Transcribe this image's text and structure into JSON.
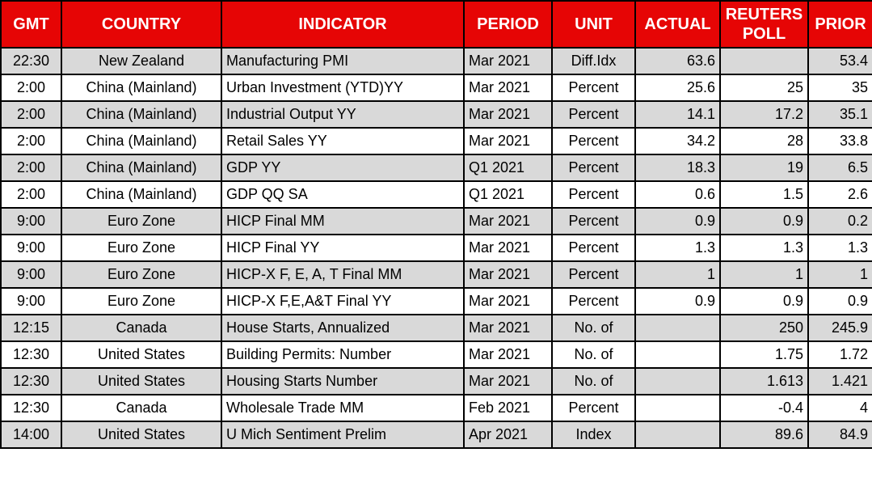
{
  "colors": {
    "header_bg": "#e60505",
    "header_text": "#ffffff",
    "row_stripe": "#d9d9d9",
    "row_plain": "#ffffff",
    "border": "#000000"
  },
  "chart_data": {
    "type": "table",
    "columns": [
      {
        "key": "gmt",
        "label": "GMT"
      },
      {
        "key": "country",
        "label": "COUNTRY"
      },
      {
        "key": "indicator",
        "label": "INDICATOR"
      },
      {
        "key": "period",
        "label": "PERIOD"
      },
      {
        "key": "unit",
        "label": "UNIT"
      },
      {
        "key": "actual",
        "label": "ACTUAL"
      },
      {
        "key": "reuters_poll",
        "label": "REUTERS POLL"
      },
      {
        "key": "prior",
        "label": "PRIOR"
      }
    ],
    "rows": [
      {
        "gmt": "22:30",
        "country": "New Zealand",
        "indicator": "Manufacturing PMI",
        "period": "Mar 2021",
        "unit": "Diff.Idx",
        "actual": "63.6",
        "reuters_poll": "",
        "prior": "53.4"
      },
      {
        "gmt": "2:00",
        "country": "China (Mainland)",
        "indicator": "Urban Investment (YTD)YY",
        "period": "Mar 2021",
        "unit": "Percent",
        "actual": "25.6",
        "reuters_poll": "25",
        "prior": "35"
      },
      {
        "gmt": "2:00",
        "country": "China (Mainland)",
        "indicator": "Industrial Output YY",
        "period": "Mar 2021",
        "unit": "Percent",
        "actual": "14.1",
        "reuters_poll": "17.2",
        "prior": "35.1"
      },
      {
        "gmt": "2:00",
        "country": "China (Mainland)",
        "indicator": "Retail Sales YY",
        "period": "Mar 2021",
        "unit": "Percent",
        "actual": "34.2",
        "reuters_poll": "28",
        "prior": "33.8"
      },
      {
        "gmt": "2:00",
        "country": "China (Mainland)",
        "indicator": "GDP YY",
        "period": "Q1 2021",
        "unit": "Percent",
        "actual": "18.3",
        "reuters_poll": "19",
        "prior": "6.5"
      },
      {
        "gmt": "2:00",
        "country": "China (Mainland)",
        "indicator": "GDP QQ SA",
        "period": "Q1 2021",
        "unit": "Percent",
        "actual": "0.6",
        "reuters_poll": "1.5",
        "prior": "2.6"
      },
      {
        "gmt": "9:00",
        "country": "Euro Zone",
        "indicator": "HICP Final MM",
        "period": "Mar 2021",
        "unit": "Percent",
        "actual": "0.9",
        "reuters_poll": "0.9",
        "prior": "0.2"
      },
      {
        "gmt": "9:00",
        "country": "Euro Zone",
        "indicator": "HICP Final YY",
        "period": "Mar 2021",
        "unit": "Percent",
        "actual": "1.3",
        "reuters_poll": "1.3",
        "prior": "1.3"
      },
      {
        "gmt": "9:00",
        "country": "Euro Zone",
        "indicator": "HICP-X F, E, A, T Final MM",
        "period": "Mar 2021",
        "unit": "Percent",
        "actual": "1",
        "reuters_poll": "1",
        "prior": "1"
      },
      {
        "gmt": "9:00",
        "country": "Euro Zone",
        "indicator": "HICP-X F,E,A&T Final YY",
        "period": "Mar 2021",
        "unit": "Percent",
        "actual": "0.9",
        "reuters_poll": "0.9",
        "prior": "0.9"
      },
      {
        "gmt": "12:15",
        "country": "Canada",
        "indicator": "House Starts, Annualized",
        "period": "Mar 2021",
        "unit": "No. of",
        "actual": "",
        "reuters_poll": "250",
        "prior": "245.9"
      },
      {
        "gmt": "12:30",
        "country": "United States",
        "indicator": "Building Permits: Number",
        "period": "Mar 2021",
        "unit": "No. of",
        "actual": "",
        "reuters_poll": "1.75",
        "prior": "1.72"
      },
      {
        "gmt": "12:30",
        "country": "United States",
        "indicator": "Housing Starts Number",
        "period": "Mar 2021",
        "unit": "No. of",
        "actual": "",
        "reuters_poll": "1.613",
        "prior": "1.421"
      },
      {
        "gmt": "12:30",
        "country": "Canada",
        "indicator": "Wholesale Trade MM",
        "period": "Feb 2021",
        "unit": "Percent",
        "actual": "",
        "reuters_poll": "-0.4",
        "prior": "4"
      },
      {
        "gmt": "14:00",
        "country": "United States",
        "indicator": "U Mich Sentiment Prelim",
        "period": "Apr 2021",
        "unit": "Index",
        "actual": "",
        "reuters_poll": "89.6",
        "prior": "84.9"
      }
    ]
  }
}
